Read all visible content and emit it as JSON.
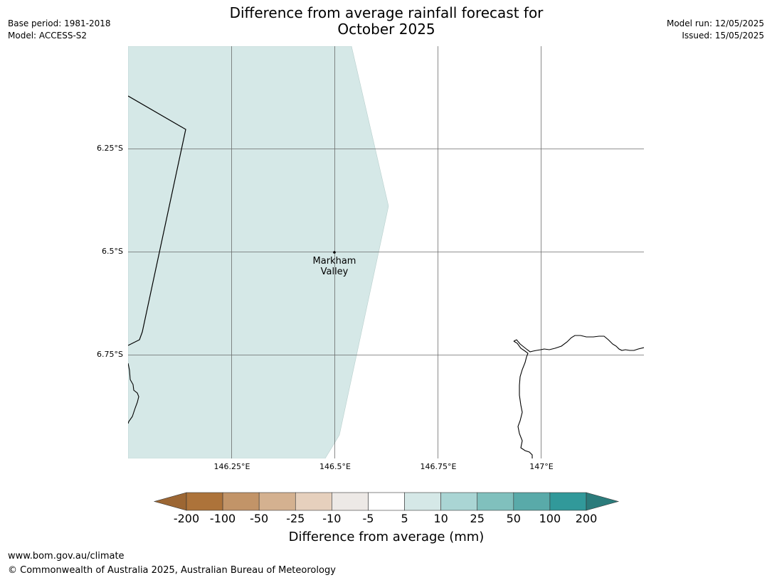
{
  "header": {
    "base_period": "Base period: 1981-2018",
    "model": "Model: ACCESS-S2",
    "title_line1": "Difference from average rainfall forecast for",
    "title_line2": "October 2025",
    "model_run": "Model run: 12/05/2025",
    "issued": "Issued: 15/05/2025"
  },
  "map": {
    "lat_labels": [
      "6.25°S",
      "6.5°S",
      "6.75°S"
    ],
    "lon_labels": [
      "146.25°E",
      "146.5°E",
      "146.75°E",
      "147°E"
    ],
    "place": {
      "name_line1": "Markham",
      "name_line2": "Valley"
    },
    "fill_category": "5 to 10",
    "fill_color": "#d5e8e7"
  },
  "legend": {
    "labels": [
      "-200",
      "-100",
      "-50",
      "-25",
      "-10",
      "-5",
      "5",
      "10",
      "25",
      "50",
      "100",
      "200"
    ],
    "colors": [
      "#9c6633",
      "#ad733a",
      "#c29468",
      "#d4b190",
      "#e6d0bd",
      "#ede9e6",
      "#ffffff",
      "#d5e8e7",
      "#aad5d4",
      "#80c0bd",
      "#59aaa9",
      "#31999a",
      "#2b7b7b"
    ],
    "title": "Difference from average (mm)"
  },
  "footer": {
    "url": "www.bom.gov.au/climate",
    "copyright": "© Commonwealth of Australia 2025, Australian Bureau of Meteorology"
  }
}
